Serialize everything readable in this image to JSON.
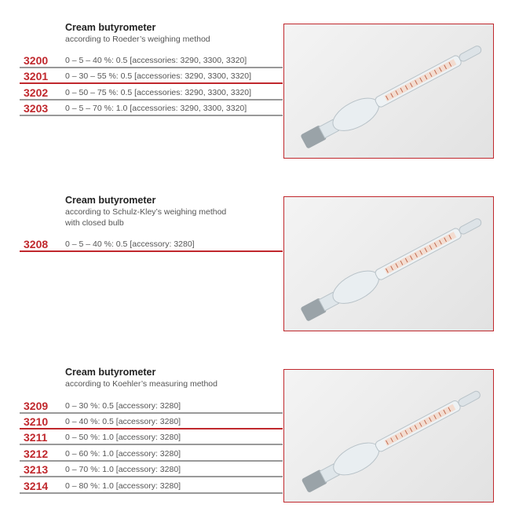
{
  "sections": [
    {
      "title": "Cream butyrometer",
      "subtitle": [
        "according to Roeder’s weighing method"
      ],
      "items": [
        {
          "number": "3200",
          "description": "0 –   5 – 40 %: 0.5 [accessories: 3290, 3300, 3320]"
        },
        {
          "number": "3201",
          "description": "0 – 30 – 55 %: 0.5 [accessories: 3290, 3300, 3320]"
        },
        {
          "number": "3202",
          "description": "0 – 50 – 75 %: 0.5 [accessories: 3290, 3300, 3320]"
        },
        {
          "number": "3203",
          "description": "0 –   5 – 70 %: 1.0 [accessories: 3290, 3300, 3320]"
        }
      ]
    },
    {
      "title": "Cream butyrometer",
      "subtitle": [
        "according to Schulz-Kley’s weighing method",
        "with closed bulb"
      ],
      "items": [
        {
          "number": "3208",
          "description": "0 – 5 – 40 %: 0.5 [accessory: 3280]"
        }
      ]
    },
    {
      "title": "Cream butyrometer",
      "subtitle": [
        "according to Koehler’s measuring method"
      ],
      "items": [
        {
          "number": "3209",
          "description": "0 – 30 %: 0.5 [accessory: 3280]"
        },
        {
          "number": "3210",
          "description": "0 – 40 %: 0.5 [accessory: 3280]"
        },
        {
          "number": "3211",
          "description": "0 – 50 %: 1.0 [accessory: 3280]"
        },
        {
          "number": "3212",
          "description": "0 – 60 %: 1.0 [accessory: 3280]"
        },
        {
          "number": "3213",
          "description": "0 – 70 %: 1.0 [accessory: 3280]"
        },
        {
          "number": "3214",
          "description": "0 – 80 %: 1.0 [accessory: 3280]"
        }
      ]
    }
  ],
  "colors": {
    "accent": "#c0282d",
    "rule": "#999999"
  }
}
